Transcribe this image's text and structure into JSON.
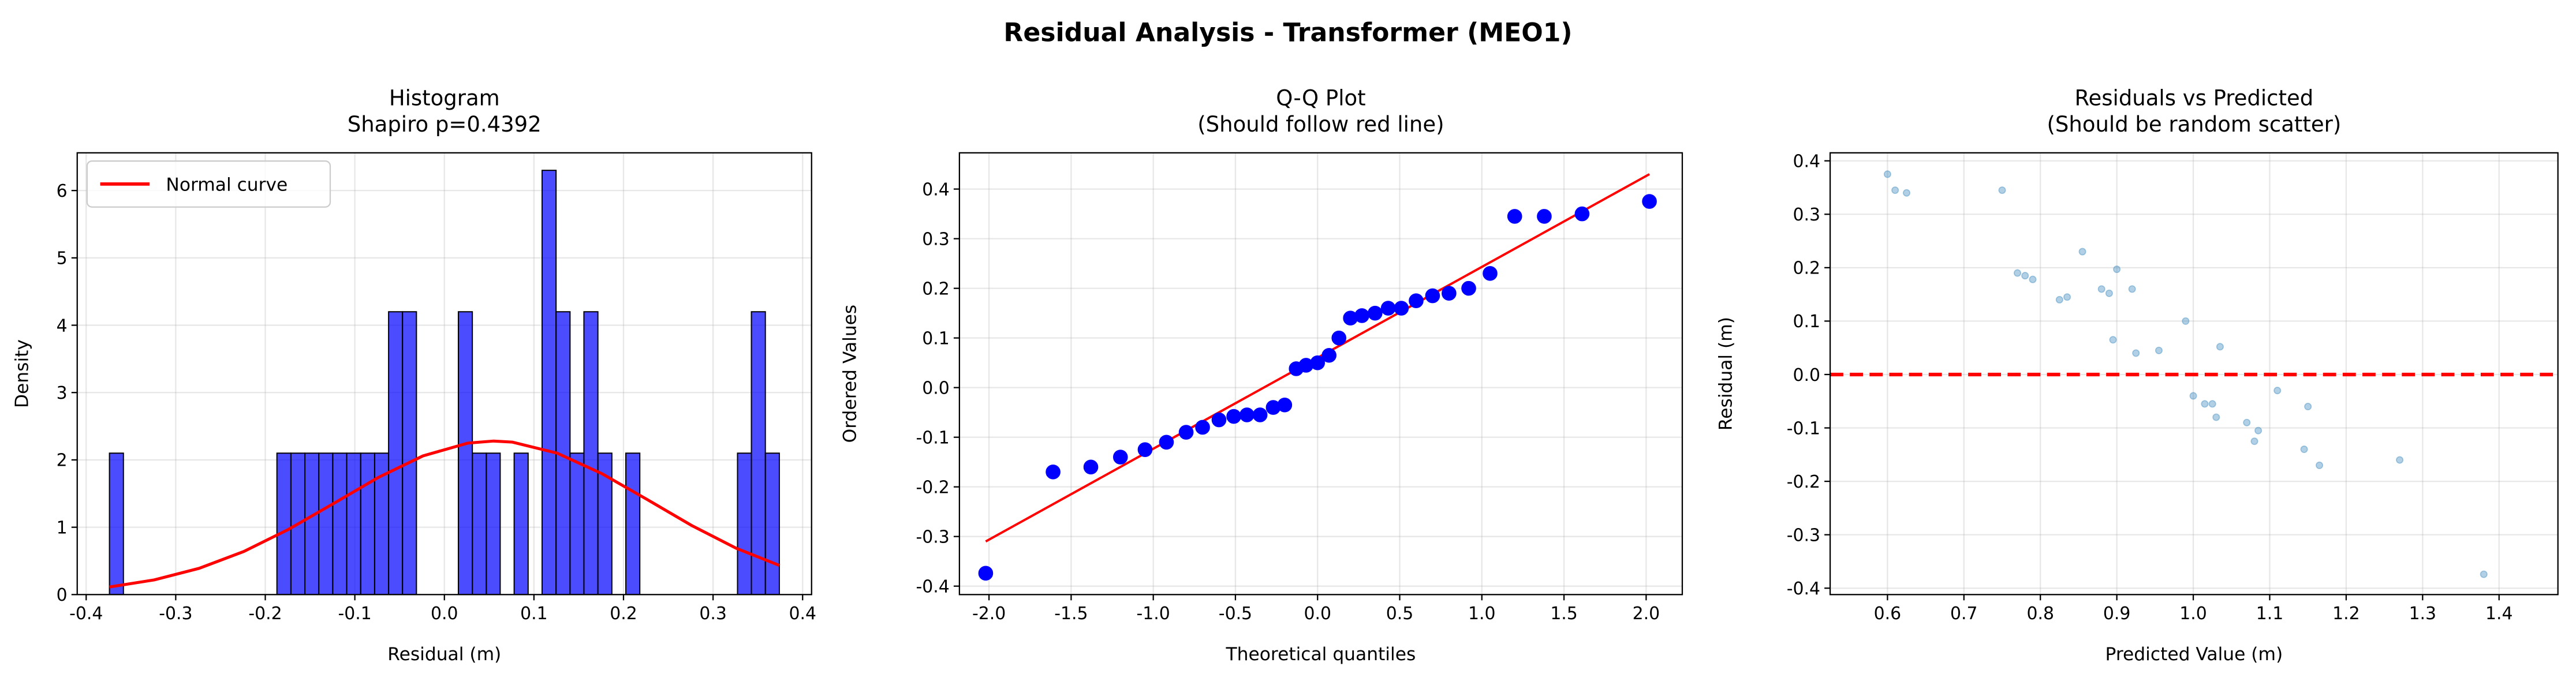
{
  "title": "Residual Analysis - Transformer (MEO1)",
  "chart_data": [
    {
      "type": "histogram",
      "title": [
        "Histogram",
        "Shapiro p=0.4392"
      ],
      "xlabel": "Residual (m)",
      "ylabel": "Density",
      "bins": [
        -0.374,
        -0.3584,
        -0.3428,
        -0.3273,
        -0.3117,
        -0.2961,
        -0.2805,
        -0.2649,
        -0.2493,
        -0.2338,
        -0.2182,
        -0.2026,
        -0.187,
        -0.1714,
        -0.1558,
        -0.1403,
        -0.1247,
        -0.1091,
        -0.0935,
        -0.0779,
        -0.0623,
        -0.0468,
        -0.0312,
        -0.0156,
        0,
        0.0156,
        0.0312,
        0.0468,
        0.0623,
        0.0779,
        0.0935,
        0.1091,
        0.1247,
        0.1403,
        0.1558,
        0.1714,
        0.187,
        0.2026,
        0.2182,
        0.2338,
        0.2493,
        0.2649,
        0.2805,
        0.2961,
        0.3117,
        0.3273,
        0.3428,
        0.3584,
        0.374
      ],
      "values": [
        2.1,
        0,
        0,
        0,
        0,
        0,
        0,
        0,
        0,
        0,
        0,
        0,
        2.1,
        2.1,
        2.1,
        2.1,
        2.1,
        2.1,
        2.1,
        2.1,
        4.2,
        4.2,
        0,
        0,
        0,
        4.2,
        2.1,
        2.1,
        0,
        2.1,
        0,
        6.3,
        4.2,
        2.1,
        4.2,
        2.1,
        0,
        2.1,
        0,
        0,
        0,
        0,
        0,
        0,
        0,
        2.1,
        4.2,
        2.1
      ],
      "color": "#0000ff",
      "alpha": 0.7,
      "edgecolor": "#000000",
      "curve": {
        "name": "Normal curve",
        "color": "#ff0000",
        "x": [
          -0.374,
          -0.324,
          -0.274,
          -0.224,
          -0.174,
          -0.124,
          -0.074,
          -0.024,
          0.026,
          0.055,
          0.076,
          0.126,
          0.176,
          0.226,
          0.276,
          0.326,
          0.374
        ],
        "values": [
          0.113,
          0.218,
          0.389,
          0.64,
          0.969,
          1.351,
          1.738,
          2.059,
          2.249,
          2.28,
          2.264,
          2.1,
          1.795,
          1.415,
          1.027,
          0.687,
          0.433
        ]
      },
      "legend": "upper left",
      "grid": true,
      "xlim": [
        -0.41,
        0.41
      ],
      "ylim": [
        0,
        6.56
      ],
      "xticks": [
        -0.4,
        -0.3,
        -0.2,
        -0.1,
        {
          "value": 0,
          "label": "0.0"
        },
        0.1,
        0.2,
        0.3,
        0.4
      ],
      "yticks": [
        0,
        1,
        2,
        3,
        4,
        5,
        6
      ]
    },
    {
      "type": "scatter",
      "title": [
        "Q-Q Plot",
        "(Should follow red line)"
      ],
      "xlabel": "Theoretical quantiles",
      "ylabel": "Ordered Values",
      "x": [
        -2.02,
        -1.61,
        -1.38,
        -1.2,
        -1.05,
        -0.92,
        -0.8,
        -0.7,
        -0.6,
        -0.51,
        -0.43,
        -0.35,
        -0.27,
        -0.2,
        -0.13,
        -0.07,
        0,
        0.07,
        0.13,
        0.2,
        0.27,
        0.35,
        0.43,
        0.51,
        0.6,
        0.7,
        0.8,
        0.92,
        1.05,
        1.2,
        1.38,
        1.61,
        2.02
      ],
      "values": [
        -0.374,
        -0.17,
        -0.16,
        -0.14,
        -0.125,
        -0.11,
        -0.09,
        -0.08,
        -0.065,
        -0.058,
        -0.055,
        -0.055,
        -0.04,
        -0.035,
        0.038,
        0.045,
        0.05,
        0.065,
        0.1,
        0.14,
        0.145,
        0.15,
        0.16,
        0.16,
        0.175,
        0.185,
        0.19,
        0.2,
        0.23,
        0.345,
        0.345,
        0.35,
        0.375
      ],
      "color": "#0000ff",
      "alpha": 1,
      "radius": 4.2,
      "line": {
        "color": "#ff0000",
        "x": [
          -2.02,
          2.02
        ],
        "values": [
          -0.31,
          0.43
        ]
      },
      "grid": true,
      "xlim": [
        -2.18,
        2.22
      ],
      "ylim": [
        -0.417,
        0.473
      ],
      "xticks": [
        {
          "value": -2,
          "label": "-2.0"
        },
        -1.5,
        {
          "value": -1,
          "label": "-1.0"
        },
        -0.5,
        {
          "value": 0,
          "label": "0.0"
        },
        0.5,
        {
          "value": 1,
          "label": "1.0"
        },
        1.5,
        {
          "value": 2,
          "label": "2.0"
        }
      ],
      "yticks": [
        -0.4,
        -0.3,
        -0.2,
        -0.1,
        {
          "value": 0,
          "label": "0.0"
        },
        0.1,
        0.2,
        0.3,
        0.4
      ]
    },
    {
      "type": "scatter",
      "title": [
        "Residuals vs Predicted",
        "(Should be random scatter)"
      ],
      "xlabel": "Predicted Value (m)",
      "ylabel": "Residual (m)",
      "x": [
        0.6,
        0.61,
        0.625,
        0.75,
        0.77,
        0.78,
        0.79,
        0.825,
        0.835,
        0.855,
        0.88,
        0.89,
        0.9,
        0.92,
        0.99,
        0.895,
        0.925,
        0.955,
        1.035,
        1.0,
        1.015,
        1.025,
        1.03,
        1.07,
        1.08,
        1.085,
        1.11,
        1.145,
        1.15,
        1.165,
        1.27,
        1.38
      ],
      "values": [
        0.375,
        0.345,
        0.34,
        0.345,
        0.19,
        0.185,
        0.178,
        0.14,
        0.145,
        0.23,
        0.16,
        0.152,
        0.197,
        0.16,
        0.1,
        0.065,
        0.04,
        0.045,
        0.052,
        -0.04,
        -0.055,
        -0.055,
        -0.08,
        -0.09,
        -0.125,
        -0.105,
        -0.03,
        -0.14,
        -0.06,
        -0.17,
        -0.16,
        -0.374
      ],
      "color": "#1f77b4",
      "alpha": 0.35,
      "radius": 2,
      "hline": 0,
      "hline_color": "#ff0000",
      "grid": true,
      "xlim": [
        0.525,
        1.477
      ],
      "ylim": [
        -0.412,
        0.415
      ],
      "xticks": [
        0.6,
        0.7,
        0.8,
        0.9,
        {
          "value": 1,
          "label": "1.0"
        },
        1.1,
        1.2,
        1.3,
        1.4
      ],
      "yticks": [
        -0.4,
        -0.3,
        -0.2,
        -0.1,
        {
          "value": 0,
          "label": "0.0"
        },
        0.1,
        0.2,
        0.3,
        0.4
      ]
    }
  ]
}
